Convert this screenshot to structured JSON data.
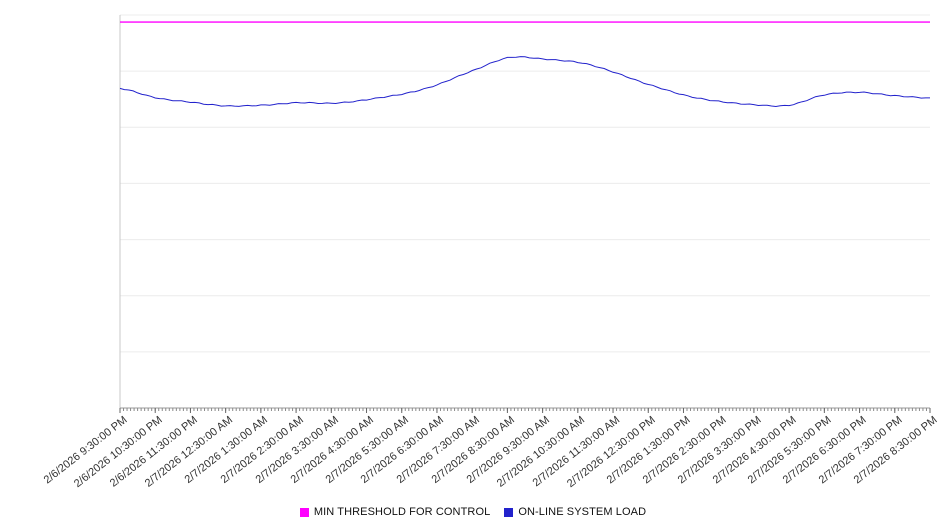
{
  "chart_data": {
    "type": "line",
    "grid": true,
    "legend_position": "bottom",
    "y_axis_labels_visible": false,
    "ylim": [
      0,
      100
    ],
    "categories": [
      "2/6/2026 9:30:00 PM",
      "2/6/2026 10:30:00 PM",
      "2/6/2026 11:30:00 PM",
      "2/7/2026 12:30:00 AM",
      "2/7/2026 1:30:00 AM",
      "2/7/2026 2:30:00 AM",
      "2/7/2026 3:30:00 AM",
      "2/7/2026 4:30:00 AM",
      "2/7/2026 5:30:00 AM",
      "2/7/2026 6:30:00 AM",
      "2/7/2026 7:30:00 AM",
      "2/7/2026 8:30:00 AM",
      "2/7/2026 9:30:00 AM",
      "2/7/2026 10:30:00 AM",
      "2/7/2026 11:30:00 AM",
      "2/7/2026 12:30:00 PM",
      "2/7/2026 1:30:00 PM",
      "2/7/2026 2:30:00 PM",
      "2/7/2026 3:30:00 PM",
      "2/7/2026 4:30:00 PM",
      "2/7/2026 5:30:00 PM",
      "2/7/2026 6:30:00 PM",
      "2/7/2026 7:30:00 PM",
      "2/7/2026 8:30:00 PM"
    ],
    "series": [
      {
        "name": "MIN THRESHOLD FOR CONTROL",
        "style": "horizontal-line",
        "color": "#ff00ff",
        "value": 98.2
      },
      {
        "name": "ON-LINE SYSTEM LOAD",
        "style": "line",
        "color": "#2222cc",
        "values": [
          81.4,
          78.9,
          77.9,
          76.8,
          77.1,
          77.6,
          77.6,
          78.4,
          79.9,
          82.2,
          85.8,
          89.1,
          88.8,
          88.0,
          85.5,
          82.4,
          79.6,
          78.1,
          77.1,
          77.1,
          79.6,
          80.4,
          79.4,
          78.9
        ]
      }
    ]
  }
}
